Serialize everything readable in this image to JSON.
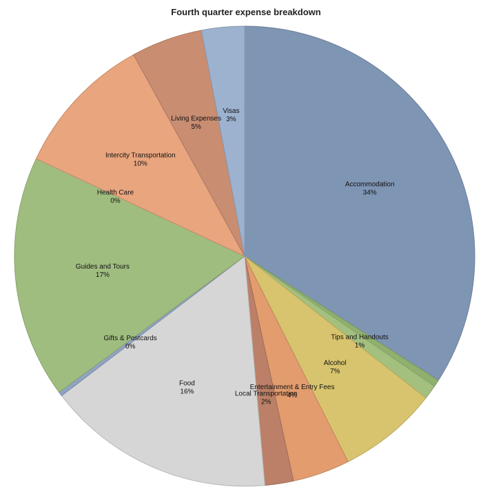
{
  "chart_data": {
    "type": "pie",
    "title": "Fourth quarter expense breakdown",
    "slices": [
      {
        "label": "Accommodation",
        "value": 34,
        "pct": "34%",
        "color": "#7f95b4"
      },
      {
        "label": "",
        "value": 0.5,
        "pct": "",
        "color": "#8fb06e"
      },
      {
        "label": "Tips and Handouts",
        "value": 1,
        "pct": "1%",
        "color": "#a3c07f"
      },
      {
        "label": "Alcohol",
        "value": 7,
        "pct": "7%",
        "color": "#d8c46e"
      },
      {
        "label": "Entertainment & Entry Fees",
        "value": 4,
        "pct": "4%",
        "color": "#e29c6e"
      },
      {
        "label": "Local Transportation",
        "value": 2,
        "pct": "2%",
        "color": "#bb8067"
      },
      {
        "label": "Food",
        "value": 16,
        "pct": "16%",
        "color": "#d6d6d6"
      },
      {
        "label": "Gifts & Postcards",
        "value": 0.3,
        "pct": "0%",
        "color": "#8fa3c4"
      },
      {
        "label": "Guides and Tours",
        "value": 17,
        "pct": "17%",
        "color": "#a0bd80"
      },
      {
        "label": "Health Care",
        "value": 0,
        "pct": "0%",
        "color": "#a0bd80"
      },
      {
        "label": "Intercity Transportation",
        "value": 10,
        "pct": "10%",
        "color": "#e8a57e"
      },
      {
        "label": "Living Expenses",
        "value": 5,
        "pct": "5%",
        "color": "#c98d72"
      },
      {
        "label": "Visas",
        "value": 3,
        "pct": "3%",
        "color": "#9db2cf"
      }
    ]
  }
}
